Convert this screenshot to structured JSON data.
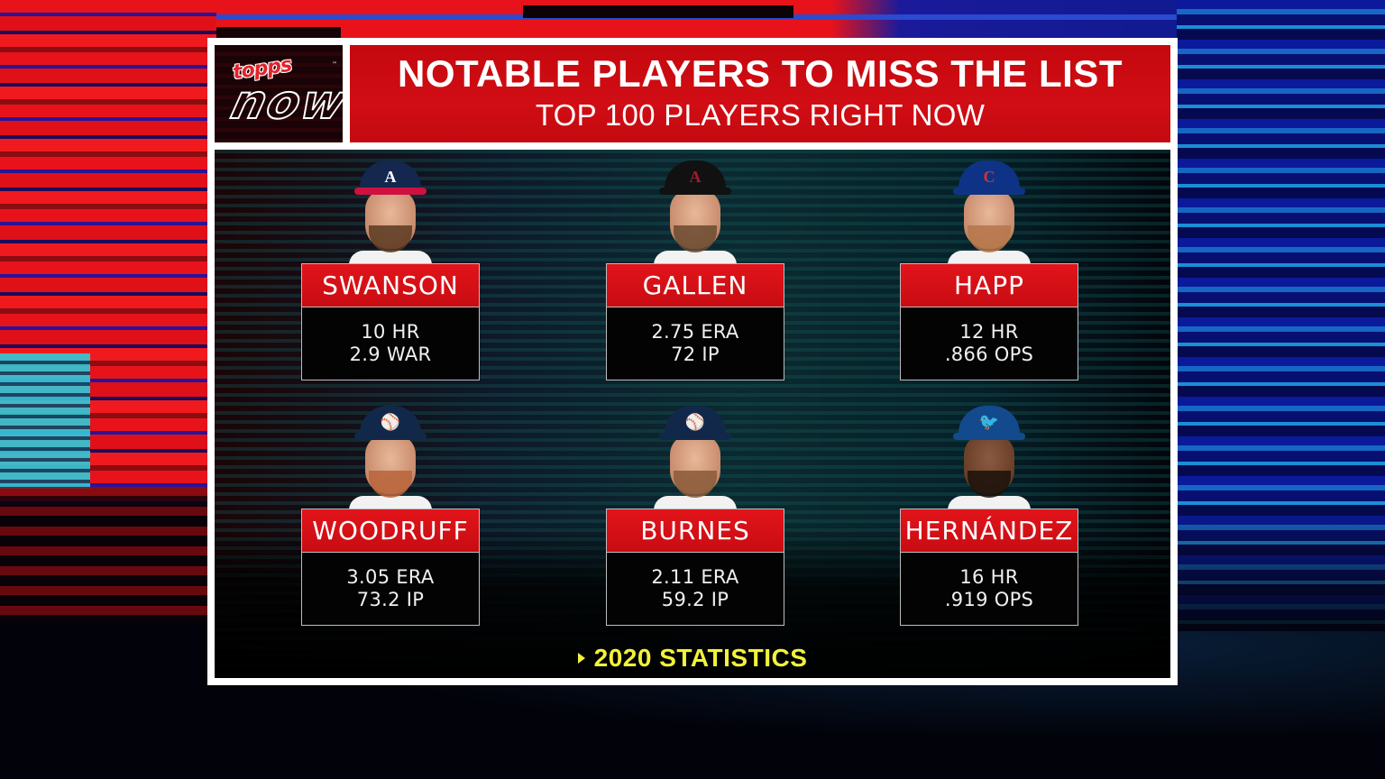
{
  "header": {
    "logo": {
      "brand": "topps",
      "product": "now",
      "trademark": "™"
    },
    "title": "NOTABLE PLAYERS TO MISS THE LIST",
    "subtitle": "TOP 100 PLAYERS RIGHT NOW"
  },
  "players": [
    {
      "name": "SWANSON",
      "team_logo": "A",
      "team_icon": "braves-cap-icon",
      "cap_color": "#13274f",
      "brim_color": "#ce1141",
      "logo_color": "#ffffff",
      "stats": [
        "10 HR",
        "2.9 WAR"
      ],
      "skin": "light",
      "beard": "#5a3a22"
    },
    {
      "name": "GALLEN",
      "team_logo": "A",
      "team_icon": "diamondbacks-cap-icon",
      "cap_color": "#111111",
      "brim_color": "#111111",
      "logo_color": "#a71930",
      "stats": [
        "2.75 ERA",
        "72 IP"
      ],
      "skin": "light",
      "beard": "#6a4a30"
    },
    {
      "name": "HAPP",
      "team_logo": "C",
      "team_icon": "cubs-cap-icon",
      "cap_color": "#0e3386",
      "brim_color": "#0e3386",
      "logo_color": "#cc3433",
      "stats": [
        "12 HR",
        ".866 OPS"
      ],
      "skin": "light",
      "beard": "#b5754a"
    },
    {
      "name": "WOODRUFF",
      "team_logo": "⚾",
      "team_icon": "brewers-cap-icon",
      "cap_color": "#12284b",
      "brim_color": "#12284b",
      "logo_color": "#ffc52f",
      "stats": [
        "3.05 ERA",
        "73.2 IP"
      ],
      "skin": "light",
      "beard": "#b8643a"
    },
    {
      "name": "BURNES",
      "team_logo": "⚾",
      "team_icon": "brewers-cap-icon",
      "cap_color": "#12284b",
      "brim_color": "#12284b",
      "logo_color": "#ffc52f",
      "stats": [
        "2.11 ERA",
        "59.2 IP"
      ],
      "skin": "light",
      "beard": "#8a5a38"
    },
    {
      "name": "HERNÁNDEZ",
      "team_logo": "🐦",
      "team_icon": "blue-jays-cap-icon",
      "cap_color": "#134a8e",
      "brim_color": "#134a8e",
      "logo_color": "#ffffff",
      "stats": [
        "16 HR",
        ".919 OPS"
      ],
      "skin": "dark",
      "beard": "#1a100a"
    }
  ],
  "footer": {
    "arrow_icon": "play-arrow-icon",
    "note": "2020 STATISTICS",
    "note_color": "#f2f23a"
  },
  "colors": {
    "panel_border": "#ffffff",
    "title_red": "#c5080f",
    "name_red": "#e2141b",
    "stat_bg": "#030303"
  }
}
